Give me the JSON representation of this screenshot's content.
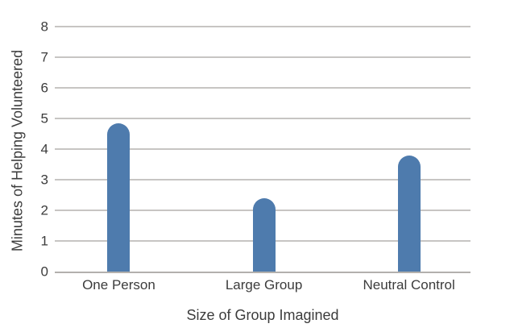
{
  "chart_data": {
    "type": "bar",
    "title": "",
    "categories": [
      "One Person",
      "Large Group",
      "Neutral Control"
    ],
    "values": [
      4.85,
      2.4,
      3.8
    ],
    "xlabel": "Size of Group Imagined",
    "ylabel": "Minutes of Helping Volunteered",
    "ylim": [
      0,
      8
    ],
    "yticks": [
      0,
      1,
      2,
      3,
      4,
      5,
      6,
      7,
      8
    ],
    "grid": true,
    "legend": false,
    "colors": {
      "bar": "#4e7bad",
      "grid": "#c7c5c3",
      "axis": "#b3b0ad",
      "text": "#3c3c3c"
    }
  }
}
